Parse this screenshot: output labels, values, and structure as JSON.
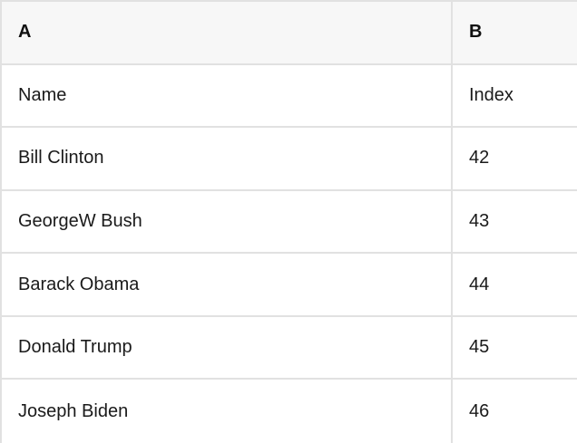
{
  "colors": {
    "header_bg": "#f7f7f7",
    "border": "#e1e1e1",
    "text": "#1a1a1a"
  },
  "table": {
    "column_headers": [
      "A",
      "B"
    ],
    "rows": [
      [
        "Name",
        "Index"
      ],
      [
        "Bill Clinton",
        "42"
      ],
      [
        "GeorgeW Bush",
        "43"
      ],
      [
        "Barack Obama",
        "44"
      ],
      [
        "Donald Trump",
        "45"
      ],
      [
        "Joseph Biden",
        "46"
      ]
    ]
  }
}
